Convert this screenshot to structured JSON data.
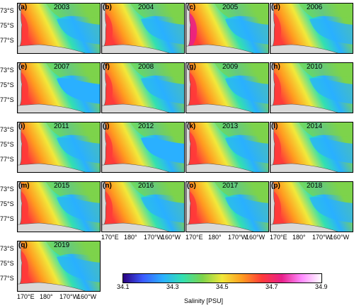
{
  "chart_data": {
    "type": "heatmap",
    "panel_labels": [
      "(a)",
      "(b)",
      "(c)",
      "(d)",
      "(e)",
      "(f)",
      "(g)",
      "(h)",
      "(i)",
      "(j)",
      "(k)",
      "(l)",
      "(m)",
      "(n)",
      "(o)",
      "(p)",
      "(q)"
    ],
    "years": [
      "2003",
      "2004",
      "2005",
      "2006",
      "2007",
      "2008",
      "2009",
      "2010",
      "2011",
      "2012",
      "2013",
      "2014",
      "2015",
      "2016",
      "2017",
      "2018",
      "2019"
    ],
    "lat_ticks": [
      "73°S",
      "75°S",
      "77°S"
    ],
    "lon_ticks": [
      "170°E",
      "180°",
      "170°W",
      "160°W"
    ],
    "colorbar": {
      "ticks": [
        "34.1",
        "34.3",
        "34.5",
        "34.7",
        "34.9"
      ],
      "range": [
        34.1,
        34.9
      ],
      "label": "Salinity [PSU]",
      "colors": [
        "#2b0080",
        "#3b5bff",
        "#2ab0ff",
        "#33e0b0",
        "#7dd34b",
        "#f2e83a",
        "#ff9c20",
        "#ff3a3a",
        "#e8208a",
        "#ff8cff",
        "#ffffff"
      ]
    }
  }
}
